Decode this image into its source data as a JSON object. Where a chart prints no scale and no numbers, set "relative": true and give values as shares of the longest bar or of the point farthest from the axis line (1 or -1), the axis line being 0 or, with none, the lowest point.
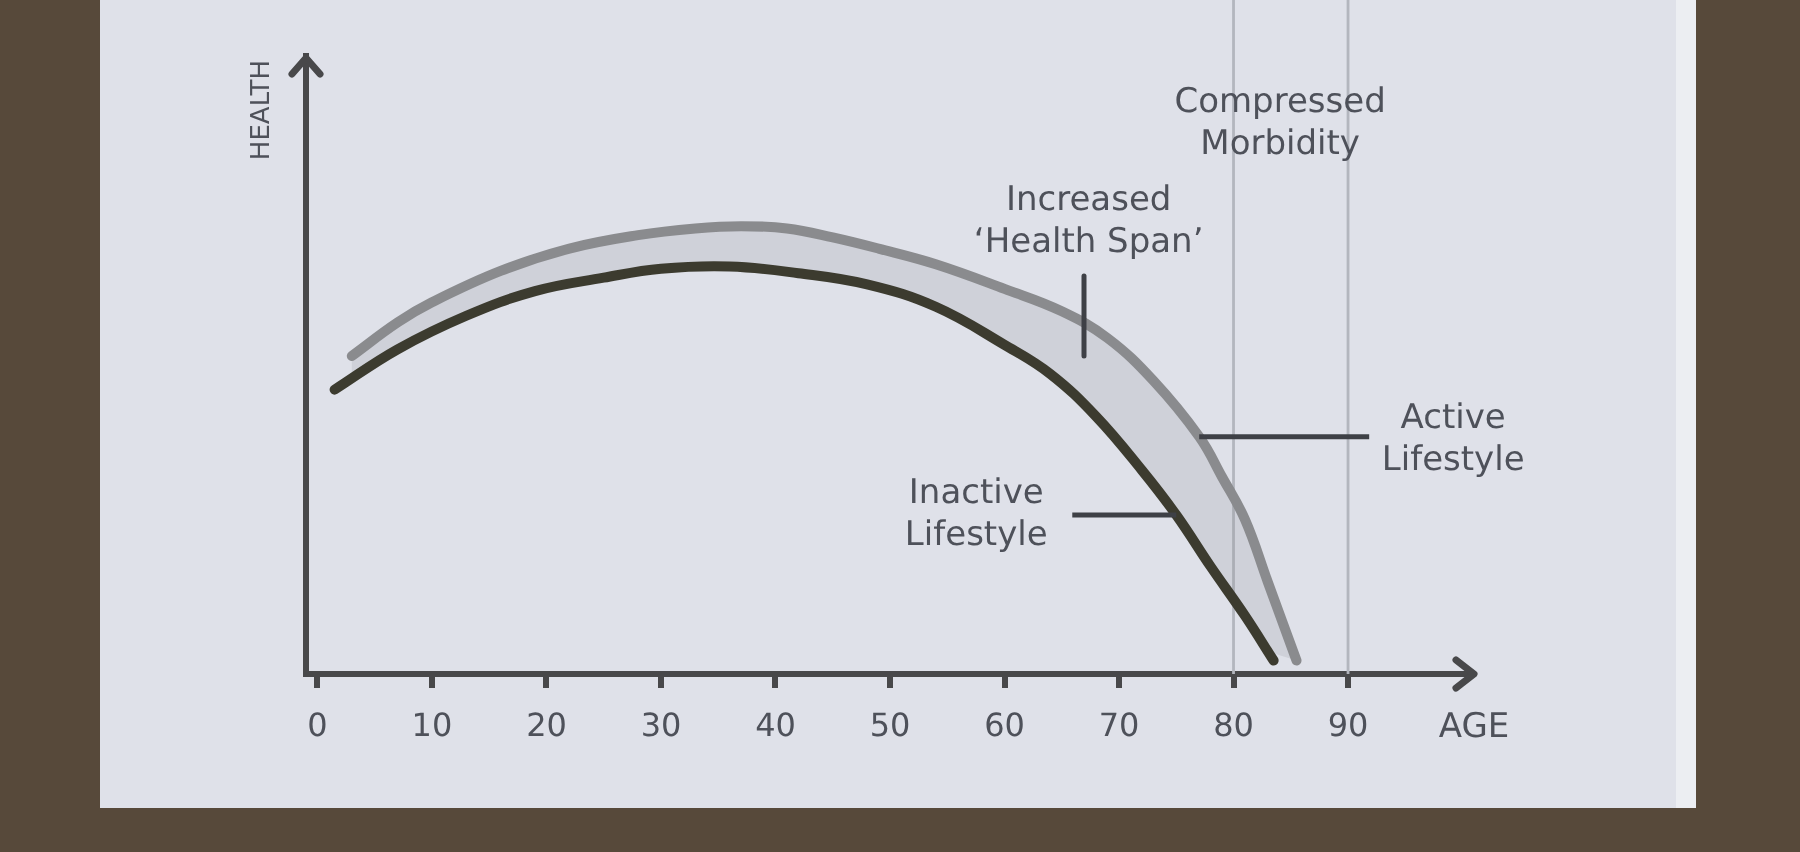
{
  "chart_data": {
    "type": "line",
    "xlabel": "AGE",
    "ylabel": "HEALTH",
    "relative": true,
    "marker": "none",
    "xlim": [
      -1,
      101
    ],
    "xticks": [
      0,
      10,
      20,
      30,
      40,
      50,
      60,
      70,
      80,
      90
    ],
    "series": [
      {
        "name": "Active Lifestyle",
        "color": "#8a8b8e",
        "x": [
          3,
          7,
          10,
          16,
          22,
          28,
          33,
          37,
          41,
          45,
          49,
          54,
          60,
          65,
          69,
          73,
          77,
          79,
          81,
          83,
          85.5
        ],
        "values": [
          0.71,
          0.785,
          0.83,
          0.9,
          0.95,
          0.98,
          0.995,
          1,
          0.995,
          0.975,
          0.95,
          0.915,
          0.86,
          0.81,
          0.75,
          0.655,
          0.53,
          0.44,
          0.345,
          0.205,
          0.03
        ],
        "lower": [
          0.66,
          0.725,
          0.765,
          0.83,
          0.872,
          0.897,
          0.908,
          0.91,
          0.898,
          0.885,
          0.865,
          0.82,
          0.735,
          0.65,
          0.545,
          0.42,
          0.28,
          0.205,
          0.13,
          0.05,
          0.03
        ],
        "upper": [
          0.71,
          0.785,
          0.83,
          0.9,
          0.95,
          0.98,
          0.995,
          1,
          0.995,
          0.975,
          0.95,
          0.915,
          0.86,
          0.81,
          0.75,
          0.655,
          0.53,
          0.44,
          0.345,
          0.205,
          0.03
        ]
      },
      {
        "name": "Inactive Lifestyle",
        "color": "#3c3b2f",
        "x": [
          1.5,
          7,
          13,
          19,
          25,
          30,
          36,
          42,
          48,
          54,
          60,
          64,
          68,
          72,
          75,
          78,
          81,
          83.5
        ],
        "values": [
          0.635,
          0.725,
          0.8,
          0.855,
          0.885,
          0.905,
          0.91,
          0.895,
          0.87,
          0.82,
          0.735,
          0.67,
          0.575,
          0.455,
          0.355,
          0.24,
          0.13,
          0.03
        ]
      }
    ],
    "ref_lines": [
      {
        "axis": "x",
        "value": 80,
        "color": "#b3b6be"
      },
      {
        "axis": "x",
        "value": 90,
        "color": "#b3b6be"
      }
    ],
    "annotations": [
      "Compressed Morbidity",
      {
        "text": "Increased ‘Health Span’",
        "x": 67,
        "y": 0.8
      }
    ]
  }
}
